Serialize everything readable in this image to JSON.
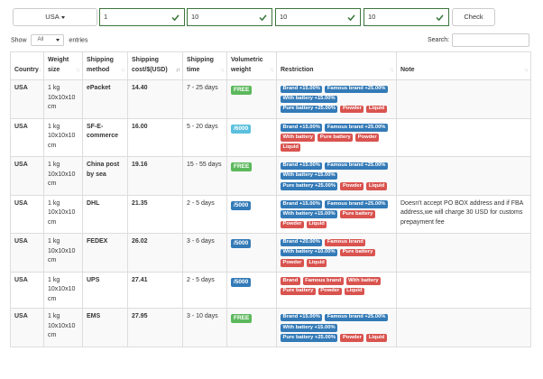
{
  "toolbar": {
    "country_value": "USA",
    "field1": "1",
    "field2": "10",
    "field3": "10",
    "field4": "10",
    "check_label": "Check"
  },
  "length": {
    "show_label": "Show",
    "selected": "All",
    "entries_label": "entries"
  },
  "search": {
    "label": "Search:",
    "value": ""
  },
  "colors": {
    "blue": "#337ab7",
    "red": "#d9534f",
    "green": "#5cb85c",
    "info": "#5bc0de",
    "valid": "#3c763d"
  },
  "table": {
    "headers": [
      "Country",
      "Weight size",
      "Shipping method",
      "Shipping cost/$(USD)",
      "Shipping time",
      "Volumetric weight",
      "Restriction",
      "Note"
    ],
    "rows": [
      {
        "country": "USA",
        "weight": "1 kg 10x10x10 cm",
        "method": "ePacket",
        "cost": "14.40",
        "time": "7 - 25 days",
        "vol": {
          "text": "FREE",
          "color": "green"
        },
        "tags": [
          {
            "text": "Brand +15.00%",
            "color": "blue"
          },
          {
            "text": "Famous brand +25.00%",
            "color": "blue"
          },
          {
            "text": "With battery +15.00%",
            "color": "blue"
          },
          {
            "text": "Pure battery +25.00%",
            "color": "blue"
          },
          {
            "text": "Powder",
            "color": "red"
          },
          {
            "text": "Liquid",
            "color": "red"
          }
        ],
        "note": ""
      },
      {
        "country": "USA",
        "weight": "1 kg 10x10x10 cm",
        "method": "SF-E-commerce",
        "cost": "16.00",
        "time": "5 - 20 days",
        "vol": {
          "text": "/6000",
          "color": "info"
        },
        "tags": [
          {
            "text": "Brand +15.00%",
            "color": "blue"
          },
          {
            "text": "Famous brand +25.00%",
            "color": "blue"
          },
          {
            "text": "With battery",
            "color": "red"
          },
          {
            "text": "Pure battery",
            "color": "red"
          },
          {
            "text": "Powder",
            "color": "red"
          },
          {
            "text": "Liquid",
            "color": "red"
          }
        ],
        "note": ""
      },
      {
        "country": "USA",
        "weight": "1 kg 10x10x10 cm",
        "method": "China post by sea",
        "cost": "19.16",
        "time": "15 - 55 days",
        "vol": {
          "text": "FREE",
          "color": "green"
        },
        "tags": [
          {
            "text": "Brand +15.00%",
            "color": "blue"
          },
          {
            "text": "Famous brand +25.00%",
            "color": "blue"
          },
          {
            "text": "With battery +15.00%",
            "color": "blue"
          },
          {
            "text": "Pure battery +25.00%",
            "color": "blue"
          },
          {
            "text": "Powder",
            "color": "red"
          },
          {
            "text": "Liquid",
            "color": "red"
          }
        ],
        "note": ""
      },
      {
        "country": "USA",
        "weight": "1 kg 10x10x10 cm",
        "method": "DHL",
        "cost": "21.35",
        "time": "2 - 5 days",
        "vol": {
          "text": "/5000",
          "color": "blue"
        },
        "tags": [
          {
            "text": "Brand +15.00%",
            "color": "blue"
          },
          {
            "text": "Famous brand +25.00%",
            "color": "blue"
          },
          {
            "text": "With battery +15.00%",
            "color": "blue"
          },
          {
            "text": "Pure battery",
            "color": "red"
          },
          {
            "text": "Powder",
            "color": "red"
          },
          {
            "text": "Liquid",
            "color": "red"
          }
        ],
        "note": "Doesn't accept PO BOX address and if FBA address,we will charge 30 USD for customs prepayment fee"
      },
      {
        "country": "USA",
        "weight": "1 kg 10x10x10 cm",
        "method": "FEDEX",
        "cost": "26.02",
        "time": "3 - 6 days",
        "vol": {
          "text": "/5000",
          "color": "blue"
        },
        "tags": [
          {
            "text": "Brand +20.00%",
            "color": "blue"
          },
          {
            "text": "Famous brand",
            "color": "red"
          },
          {
            "text": "With battery +10.00%",
            "color": "blue"
          },
          {
            "text": "Pure battery",
            "color": "red"
          },
          {
            "text": "Powder",
            "color": "red"
          },
          {
            "text": "Liquid",
            "color": "red"
          }
        ],
        "note": ""
      },
      {
        "country": "USA",
        "weight": "1 kg 10x10x10 cm",
        "method": "UPS",
        "cost": "27.41",
        "time": "2 - 5 days",
        "vol": {
          "text": "/5000",
          "color": "blue"
        },
        "tags": [
          {
            "text": "Brand",
            "color": "red"
          },
          {
            "text": "Famous brand",
            "color": "red"
          },
          {
            "text": "With battery",
            "color": "red"
          },
          {
            "text": "Pure battery",
            "color": "red"
          },
          {
            "text": "Powder",
            "color": "red"
          },
          {
            "text": "Liquid",
            "color": "red"
          }
        ],
        "note": ""
      },
      {
        "country": "USA",
        "weight": "1 kg 10x10x10 cm",
        "method": "EMS",
        "cost": "27.95",
        "time": "3 - 10 days",
        "vol": {
          "text": "FREE",
          "color": "green"
        },
        "tags": [
          {
            "text": "Brand +15.00%",
            "color": "blue"
          },
          {
            "text": "Famous brand +25.00%",
            "color": "blue"
          },
          {
            "text": "With battery +15.00%",
            "color": "blue"
          },
          {
            "text": "Pure battery +25.00%",
            "color": "blue"
          },
          {
            "text": "Powder",
            "color": "red"
          },
          {
            "text": "Liquid",
            "color": "red"
          }
        ],
        "note": ""
      }
    ]
  }
}
